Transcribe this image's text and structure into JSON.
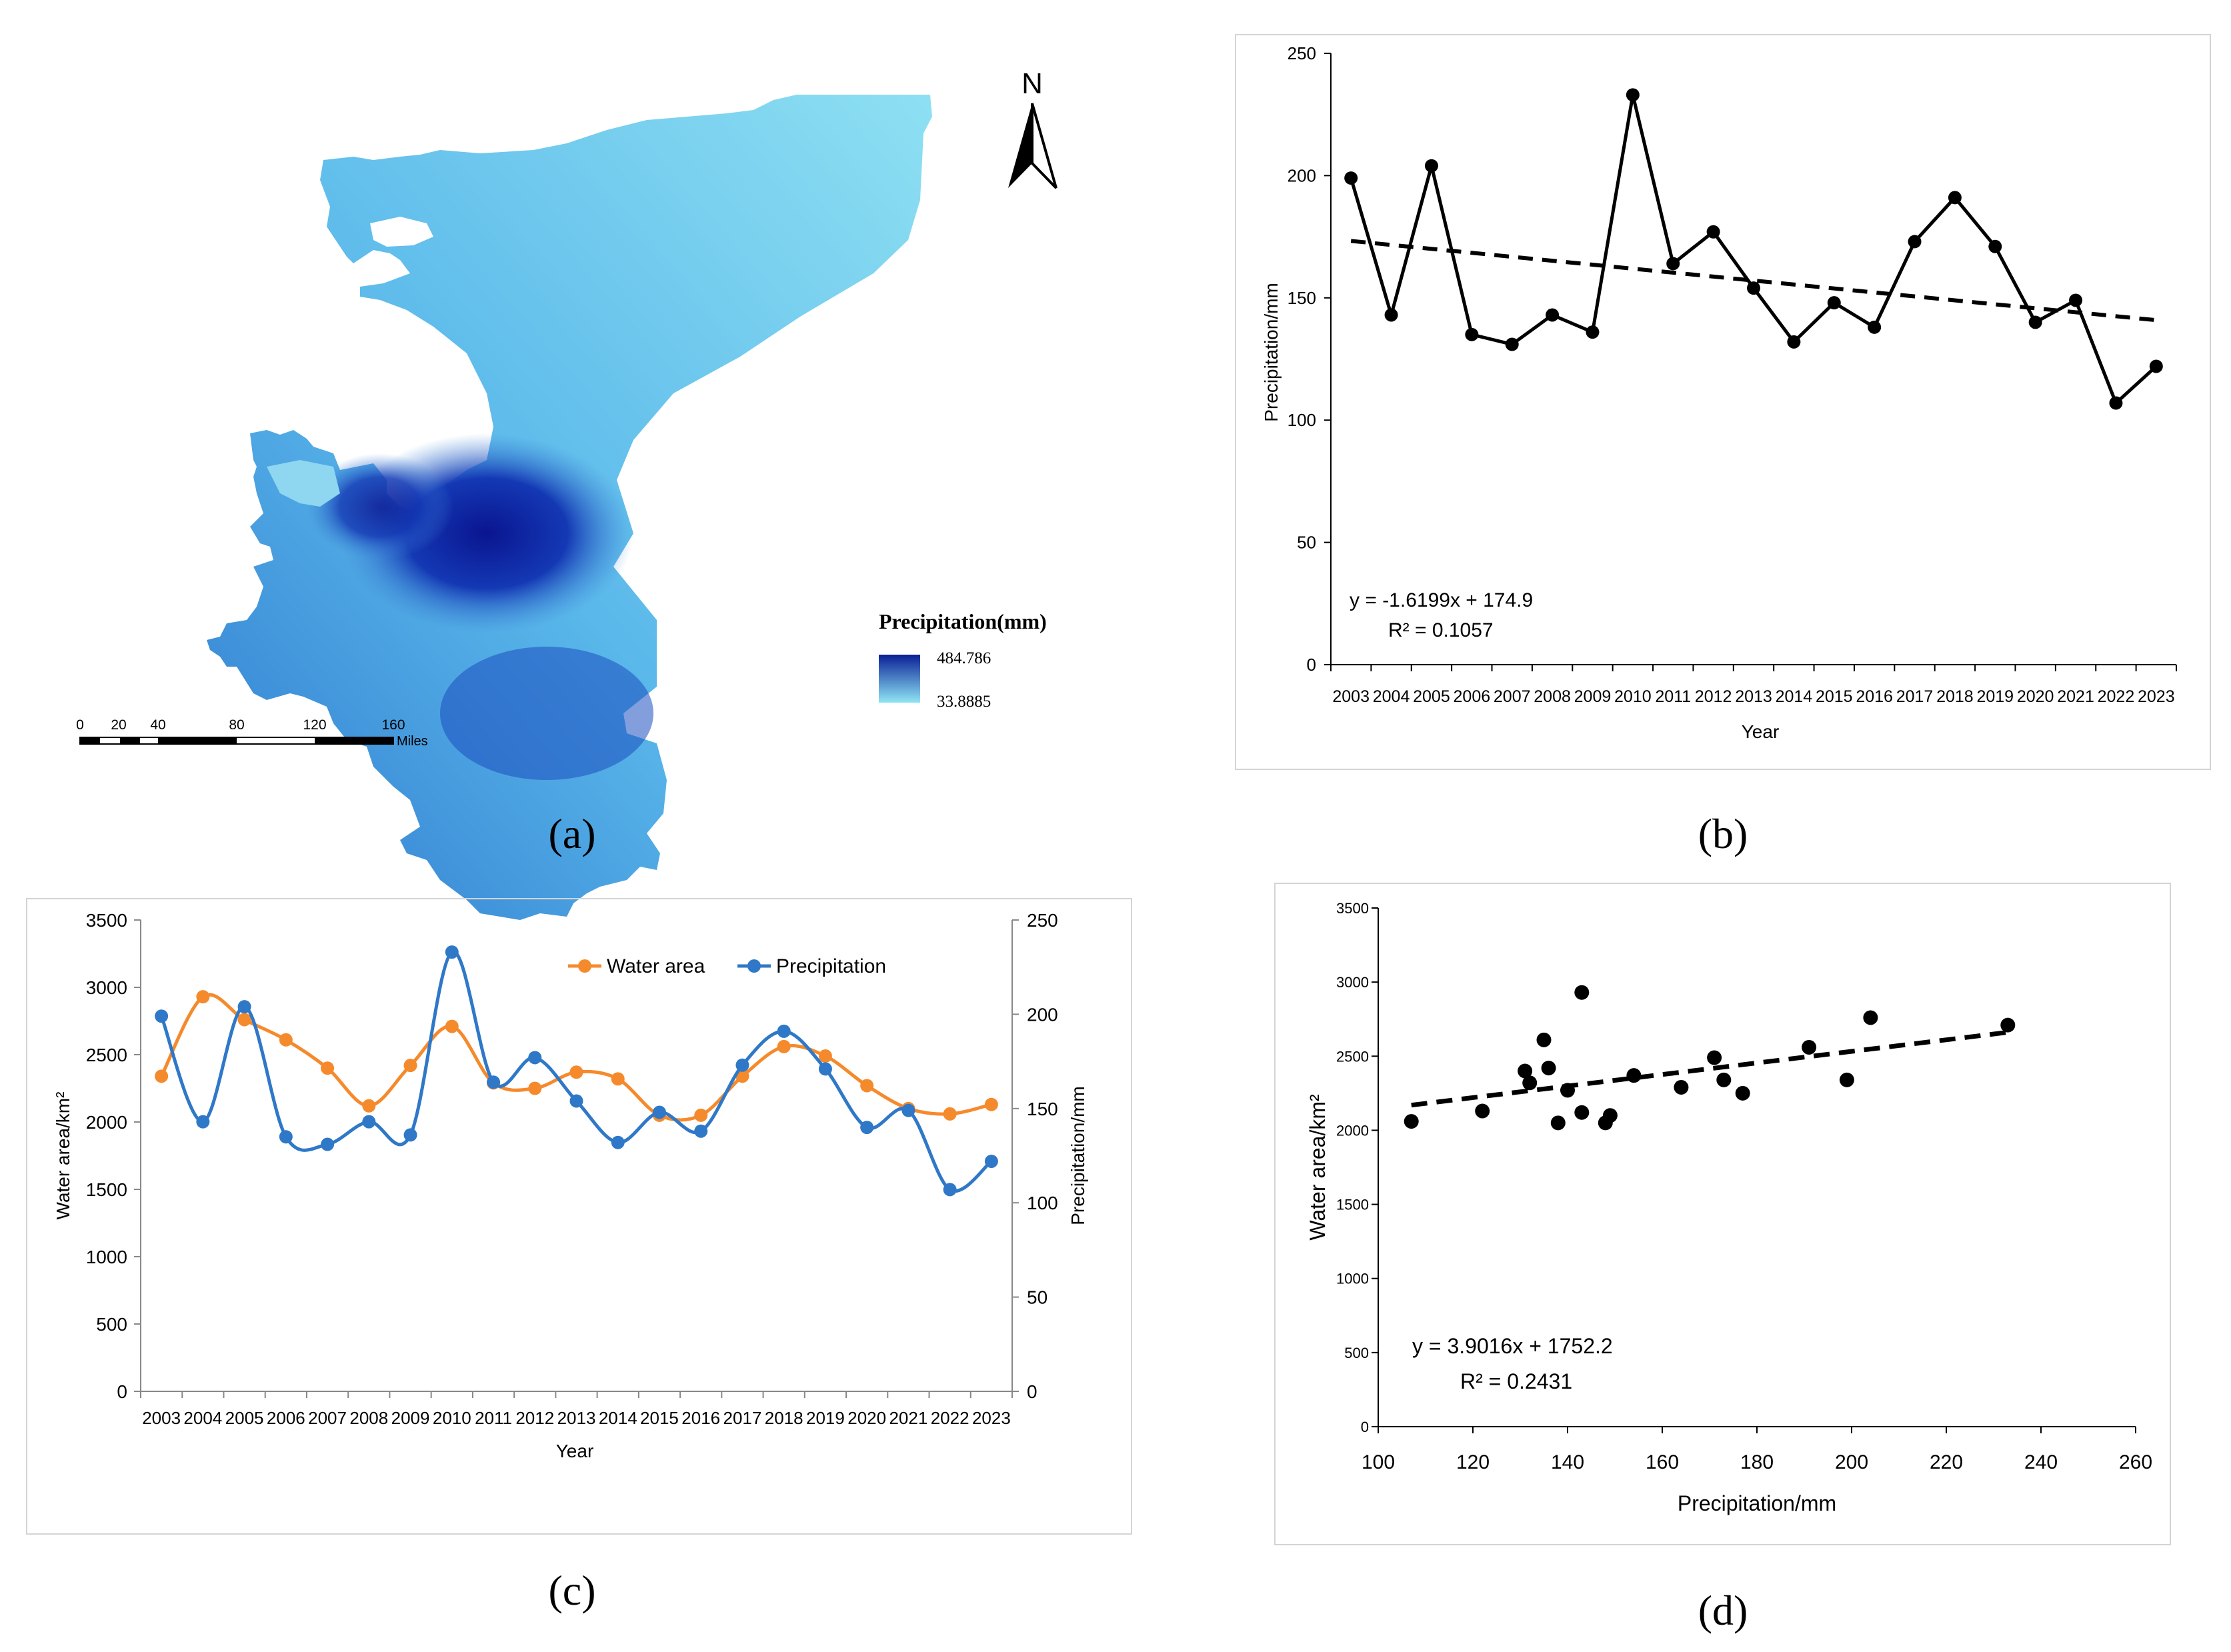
{
  "panels": {
    "a": "(a)",
    "b": "(b)",
    "c": "(c)",
    "d": "(d)"
  },
  "map": {
    "north_label": "N",
    "legend_title": "Precipitation(mm)",
    "legend_max": "484.786",
    "legend_min": "33.8885",
    "legend_colors": [
      "#0a1f96",
      "#8fe6f4"
    ],
    "scale_ticks": [
      "0",
      "20",
      "40",
      "80",
      "120",
      "160"
    ],
    "scale_unit": "Miles"
  },
  "chart_data": [
    {
      "type": "line",
      "panel": "b",
      "x": [
        2003,
        2004,
        2005,
        2006,
        2007,
        2008,
        2009,
        2010,
        2011,
        2012,
        2013,
        2014,
        2015,
        2016,
        2017,
        2018,
        2019,
        2020,
        2021,
        2022,
        2023
      ],
      "x_labels": [
        "2003",
        "2004",
        "2005",
        "2006",
        "2007",
        "2008",
        "2009",
        "2010",
        "2011",
        "2012",
        "2013",
        "2014",
        "2015",
        "2016",
        "2017",
        "2018",
        "2019",
        "2020",
        "2021",
        "2022",
        "2023"
      ],
      "values": [
        199,
        143,
        204,
        135,
        131,
        143,
        136,
        233,
        164,
        177,
        154,
        132,
        148,
        138,
        173,
        191,
        171,
        140,
        149,
        107,
        122
      ],
      "trend": {
        "slope": -1.6199,
        "intercept": 174.9
      },
      "equation": "y = -1.6199x + 174.9",
      "r2": "R² = 0.1057",
      "xlabel": "Year",
      "ylabel": "Precipitation/mm",
      "ylim": [
        0,
        250
      ],
      "yticks": [
        "0",
        "50",
        "100",
        "150",
        "200",
        "250"
      ]
    },
    {
      "type": "line",
      "panel": "c",
      "x_labels": [
        "2003",
        "2004",
        "2005",
        "2006",
        "2007",
        "2008",
        "2009",
        "2010",
        "2011",
        "2012",
        "2013",
        "2014",
        "2015",
        "2016",
        "2017",
        "2018",
        "2019",
        "2020",
        "2021",
        "2022",
        "2023"
      ],
      "series": [
        {
          "name": "Water area",
          "color": "#f58a2c",
          "axis": "left",
          "values": [
            2340,
            2930,
            2760,
            2610,
            2400,
            2120,
            2420,
            2710,
            2290,
            2250,
            2370,
            2320,
            2050,
            2050,
            2340,
            2560,
            2490,
            2270,
            2100,
            2060,
            2130
          ]
        },
        {
          "name": "Precipitation",
          "color": "#2f78c8",
          "axis": "right",
          "values": [
            199,
            143,
            204,
            135,
            131,
            143,
            136,
            233,
            164,
            177,
            154,
            132,
            148,
            138,
            173,
            191,
            171,
            140,
            149,
            107,
            122
          ]
        }
      ],
      "xlabel": "Year",
      "ylabel_left": "Water area/km²",
      "ylabel_right": "Precipitation/mm",
      "ylim_left": [
        0,
        3500
      ],
      "ylim_right": [
        0,
        250
      ],
      "yticks_left": [
        "0",
        "500",
        "1000",
        "1500",
        "2000",
        "2500",
        "3000",
        "3500"
      ],
      "yticks_right": [
        "0",
        "50",
        "100",
        "150",
        "200",
        "250"
      ]
    },
    {
      "type": "scatter",
      "panel": "d",
      "points": [
        [
          199,
          2340
        ],
        [
          143,
          2930
        ],
        [
          204,
          2760
        ],
        [
          135,
          2610
        ],
        [
          131,
          2400
        ],
        [
          143,
          2120
        ],
        [
          136,
          2420
        ],
        [
          233,
          2710
        ],
        [
          164,
          2290
        ],
        [
          177,
          2250
        ],
        [
          154,
          2370
        ],
        [
          132,
          2320
        ],
        [
          148,
          2050
        ],
        [
          138,
          2050
        ],
        [
          173,
          2340
        ],
        [
          191,
          2560
        ],
        [
          171,
          2490
        ],
        [
          140,
          2270
        ],
        [
          149,
          2100
        ],
        [
          107,
          2060
        ],
        [
          122,
          2130
        ]
      ],
      "trend": {
        "slope": 3.9016,
        "intercept": 1752.2
      },
      "equation": "y = 3.9016x + 1752.2",
      "r2": "R² = 0.2431",
      "xlabel": "Precipitation/mm",
      "ylabel": "Water area/km²",
      "xlim": [
        100,
        260
      ],
      "ylim": [
        0,
        3500
      ],
      "xticks": [
        "100",
        "120",
        "140",
        "160",
        "180",
        "200",
        "220",
        "240",
        "260"
      ],
      "yticks": [
        "0",
        "500",
        "1000",
        "1500",
        "2000",
        "2500",
        "3000",
        "3500"
      ]
    }
  ]
}
